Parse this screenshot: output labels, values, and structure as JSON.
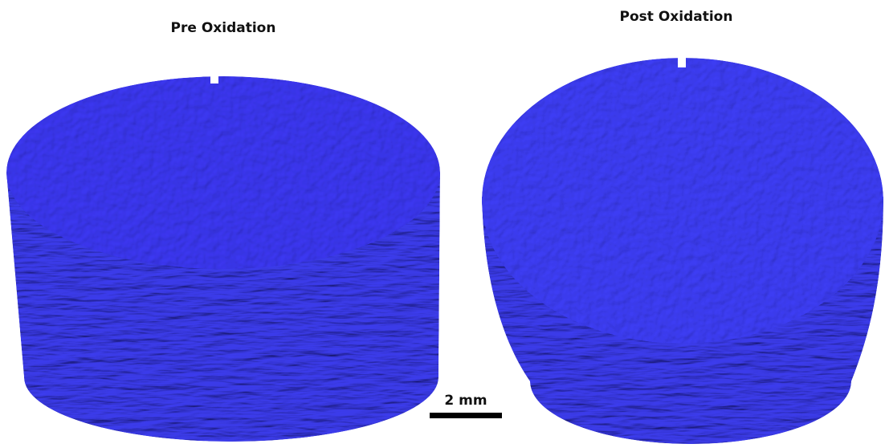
{
  "panels": [
    {
      "title": "Pre Oxidation"
    },
    {
      "title": "Post Oxidation"
    }
  ],
  "scale_bar": {
    "label": "2 mm"
  }
}
